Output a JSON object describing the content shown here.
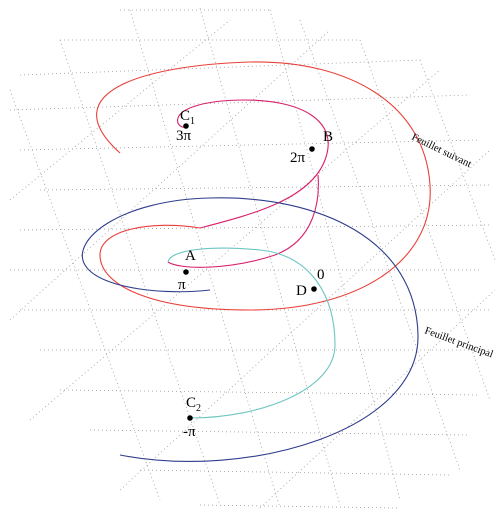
{
  "colors": {
    "curve_upper": "#e8403a",
    "curve_upper_inner": "#d8206a",
    "curve_lower": "#2f3d8c",
    "curve_lower_inner": "#6cc6c2",
    "grid": "#9a9a9a",
    "points": "#000000"
  },
  "points": {
    "A": {
      "name": "A",
      "value": "π"
    },
    "B": {
      "name": "B",
      "value": "2π"
    },
    "C1": {
      "name": "C",
      "subscript": "1",
      "value": "3π"
    },
    "C2": {
      "name": "C",
      "subscript": "2",
      "value": "-π"
    },
    "D": {
      "name": "D",
      "value": "0"
    }
  },
  "sheets": {
    "upper": "Feuillet suivant",
    "lower": "Feuillet principal"
  }
}
